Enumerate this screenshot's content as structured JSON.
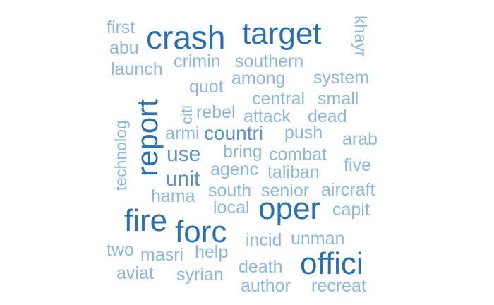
{
  "colors": {
    "background": "#ffffff",
    "tier1": "#2a6fb0",
    "tier2": "#5a93c5",
    "tier3": "#8fb8d8"
  },
  "words": [
    {
      "text": "first",
      "tier": "tier3"
    },
    {
      "text": "abu",
      "tier": "tier3"
    },
    {
      "text": "crash",
      "tier": "tier1"
    },
    {
      "text": "target",
      "tier": "tier1"
    },
    {
      "text": "khayr",
      "tier": "tier3"
    },
    {
      "text": "launch",
      "tier": "tier3"
    },
    {
      "text": "crimin",
      "tier": "tier3"
    },
    {
      "text": "southern",
      "tier": "tier3"
    },
    {
      "text": "quot",
      "tier": "tier3"
    },
    {
      "text": "among",
      "tier": "tier3"
    },
    {
      "text": "system",
      "tier": "tier3"
    },
    {
      "text": "report",
      "tier": "tier1"
    },
    {
      "text": "central",
      "tier": "tier3"
    },
    {
      "text": "small",
      "tier": "tier3"
    },
    {
      "text": "technolog",
      "tier": "tier3"
    },
    {
      "text": "citi",
      "tier": "tier3"
    },
    {
      "text": "rebel",
      "tier": "tier3"
    },
    {
      "text": "attack",
      "tier": "tier3"
    },
    {
      "text": "dead",
      "tier": "tier3"
    },
    {
      "text": "armi",
      "tier": "tier3"
    },
    {
      "text": "countri",
      "tier": "tier2"
    },
    {
      "text": "push",
      "tier": "tier3"
    },
    {
      "text": "arab",
      "tier": "tier3"
    },
    {
      "text": "use",
      "tier": "tier2"
    },
    {
      "text": "bring",
      "tier": "tier3"
    },
    {
      "text": "combat",
      "tier": "tier3"
    },
    {
      "text": "unit",
      "tier": "tier2"
    },
    {
      "text": "agenc",
      "tier": "tier3"
    },
    {
      "text": "taliban",
      "tier": "tier3"
    },
    {
      "text": "five",
      "tier": "tier3"
    },
    {
      "text": "hama",
      "tier": "tier3"
    },
    {
      "text": "south",
      "tier": "tier3"
    },
    {
      "text": "senior",
      "tier": "tier3"
    },
    {
      "text": "aircraft",
      "tier": "tier3"
    },
    {
      "text": "local",
      "tier": "tier3"
    },
    {
      "text": "oper",
      "tier": "tier1"
    },
    {
      "text": "capit",
      "tier": "tier3"
    },
    {
      "text": "fire",
      "tier": "tier1"
    },
    {
      "text": "forc",
      "tier": "tier1"
    },
    {
      "text": "incid",
      "tier": "tier3"
    },
    {
      "text": "unman",
      "tier": "tier3"
    },
    {
      "text": "two",
      "tier": "tier3"
    },
    {
      "text": "masri",
      "tier": "tier3"
    },
    {
      "text": "help",
      "tier": "tier3"
    },
    {
      "text": "offici",
      "tier": "tier1"
    },
    {
      "text": "aviat",
      "tier": "tier3"
    },
    {
      "text": "syrian",
      "tier": "tier3"
    },
    {
      "text": "death",
      "tier": "tier3"
    },
    {
      "text": "author",
      "tier": "tier3"
    },
    {
      "text": "recreat",
      "tier": "tier3"
    }
  ]
}
